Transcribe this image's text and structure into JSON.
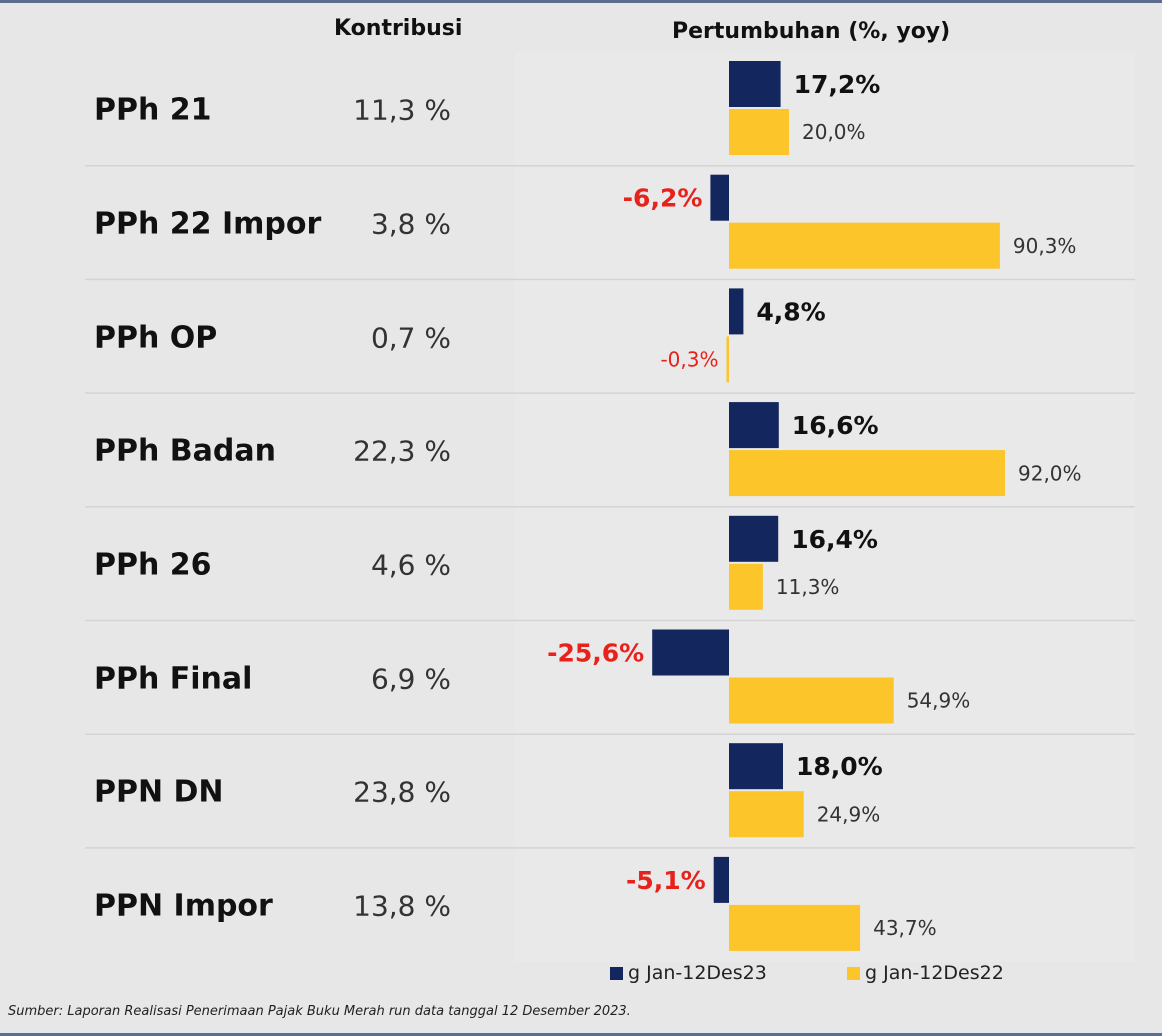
{
  "headers": {
    "contribution": "Kontribusi",
    "growth": "Pertumbuhan (%, yoy)"
  },
  "colors": {
    "series_2023": "#14265e",
    "series_2022": "#fcc52a",
    "negative_label": "#e8211a",
    "positive_label": "#111111"
  },
  "chart_data": {
    "type": "bar",
    "orientation": "horizontal",
    "categories": [
      "PPh 21",
      "PPh 22 Impor",
      "PPh OP",
      "PPh Badan",
      "PPh 26",
      "PPh Final",
      "PPN DN",
      "PPN Impor"
    ],
    "contribution_labels": [
      "11,3 %",
      "3,8 %",
      "0,7 %",
      "22,3 %",
      "4,6 %",
      "6,9 %",
      "23,8 %",
      "13,8 %"
    ],
    "series": [
      {
        "name": "g Jan-12Des23",
        "values": [
          17.2,
          -6.2,
          4.8,
          16.6,
          16.4,
          -25.6,
          18.0,
          -5.1
        ],
        "labels": [
          "17,2%",
          "-6,2%",
          "4,8%",
          "16,6%",
          "16,4%",
          "-25,6%",
          "18,0%",
          "-5,1%"
        ]
      },
      {
        "name": "g Jan-12Des22",
        "values": [
          20.0,
          90.3,
          -0.3,
          92.0,
          11.3,
          54.9,
          24.9,
          43.7
        ],
        "labels": [
          "20,0%",
          "90,3%",
          "-0,3%",
          "92,0%",
          "11,3%",
          "54,9%",
          "24,9%",
          "43,7%"
        ]
      }
    ],
    "xlim": [
      -30,
      100
    ]
  },
  "footer": {
    "source": "Sumber: Laporan Realisasi Penerimaan Pajak Buku Merah run data tanggal 12 Desember 2023."
  }
}
